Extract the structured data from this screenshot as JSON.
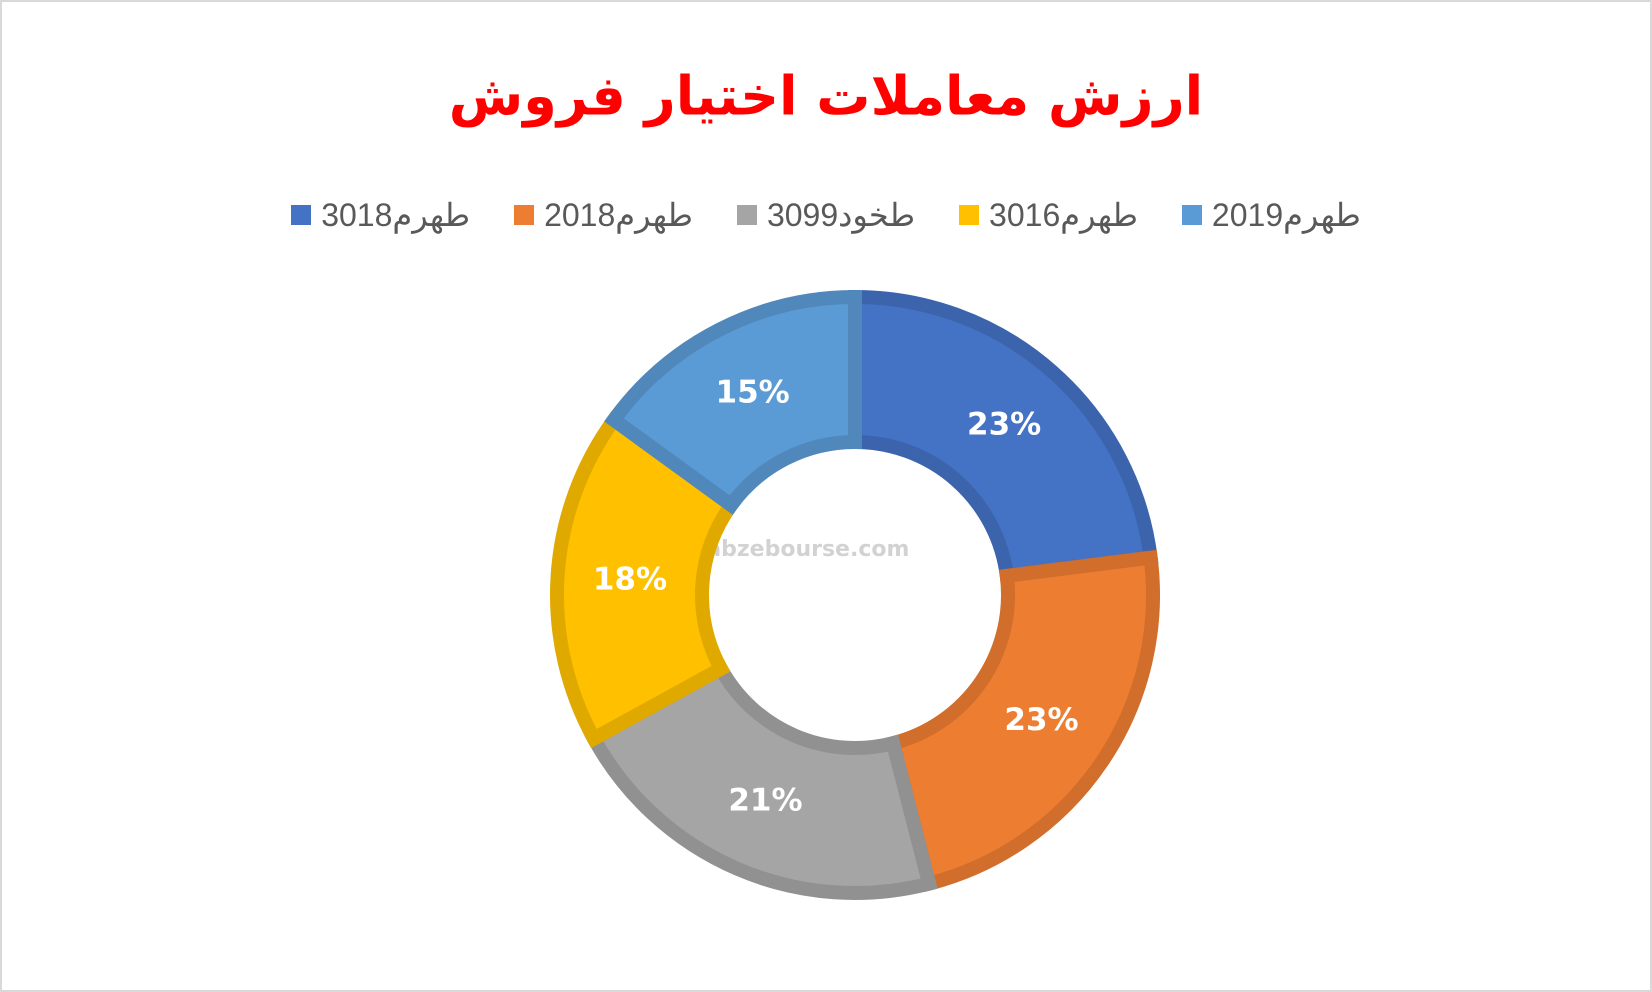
{
  "chart_data": {
    "type": "donut",
    "title": "ارزش معاملات اختیار فروش",
    "watermark": "nabzebourse.com",
    "categories": [
      "طهرم3018",
      "طهرم2018",
      "طخود3099",
      "طهرم3016",
      "طهرم2019"
    ],
    "values": [
      23,
      23,
      21,
      18,
      15
    ],
    "value_labels": [
      "23%",
      "23%",
      "21%",
      "18%",
      "15%"
    ],
    "colors": [
      "#4472c4",
      "#ed7d31",
      "#a5a5a5",
      "#ffc000",
      "#5b9bd5"
    ],
    "legend": "top"
  }
}
